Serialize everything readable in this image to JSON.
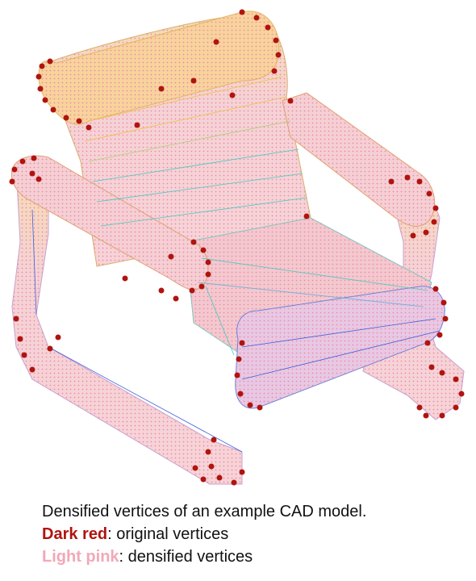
{
  "colors": {
    "original_vertex": "#b0140f",
    "densified_vertex": "#f2a8b8",
    "surface": "#f7d3d8",
    "edge_warm": "#f0c040",
    "edge_cool": "#48c8c0",
    "edge_blue": "#4060d8"
  },
  "figure": {
    "subject": "chair"
  },
  "caption": {
    "line1": "Densified vertices of an example CAD model.",
    "legend": [
      {
        "term": "Dark red",
        "desc": ": original vertices"
      },
      {
        "term": "Light pink",
        "desc": ": densified vertices"
      }
    ]
  }
}
